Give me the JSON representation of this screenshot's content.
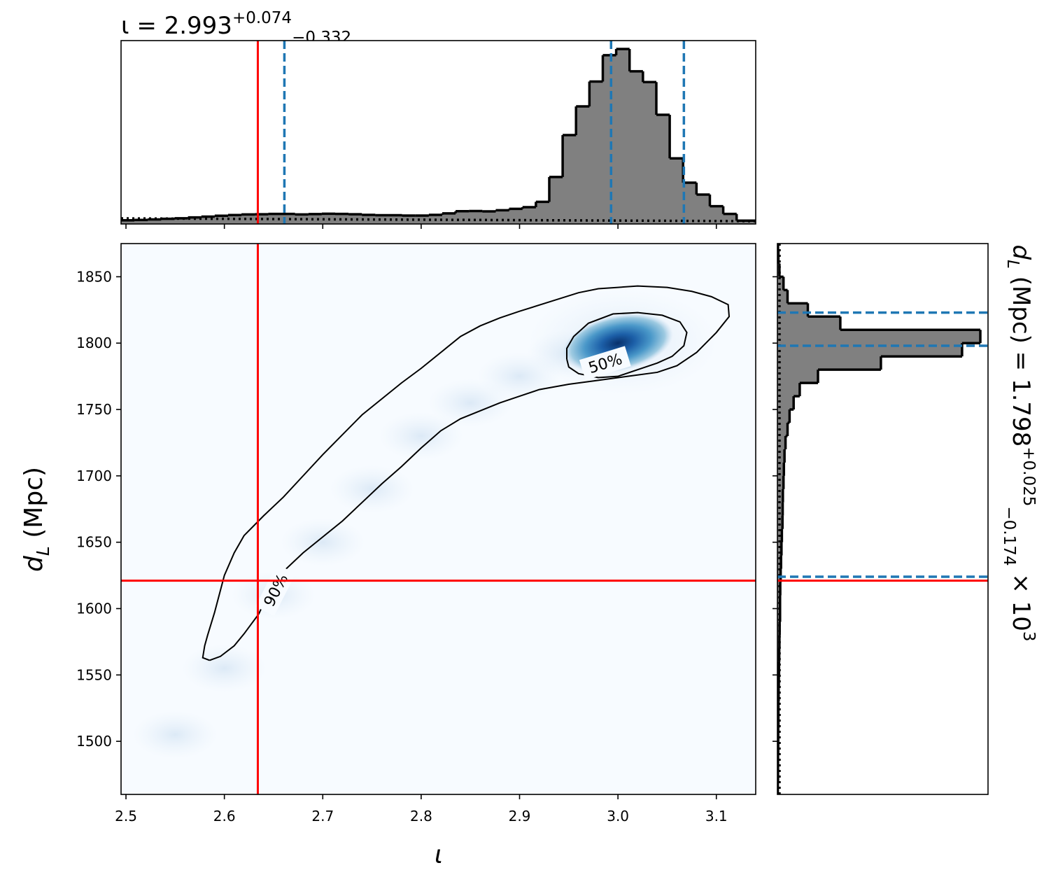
{
  "chart_data": [
    {
      "panel": "top-marginal",
      "type": "histogram",
      "title": {
        "prefix": "ι = 2.993",
        "sup": "+0.074",
        "sub": "−0.332"
      },
      "x_param": "ι",
      "xlim": [
        2.495,
        3.14
      ],
      "bins": [
        2.495,
        2.5086,
        2.5222,
        2.5358,
        2.5494,
        2.563,
        2.5766,
        2.5902,
        2.6038,
        2.6174,
        2.631,
        2.6446,
        2.6582,
        2.6718,
        2.6854,
        2.699,
        2.7126,
        2.7262,
        2.7398,
        2.7534,
        2.767,
        2.7806,
        2.7942,
        2.8078,
        2.8214,
        2.835,
        2.8486,
        2.8622,
        2.8758,
        2.8894,
        2.903,
        2.9166,
        2.9302,
        2.9438,
        2.9574,
        2.971,
        2.9846,
        2.9982,
        3.0118,
        3.0254,
        3.039,
        3.0526,
        3.0662,
        3.0798,
        3.0934,
        3.107,
        3.1206,
        3.14
      ],
      "counts": [
        0.02,
        0.022,
        0.025,
        0.028,
        0.031,
        0.036,
        0.04,
        0.045,
        0.049,
        0.052,
        0.053,
        0.055,
        0.055,
        0.052,
        0.054,
        0.056,
        0.055,
        0.053,
        0.05,
        0.048,
        0.048,
        0.046,
        0.046,
        0.05,
        0.058,
        0.07,
        0.071,
        0.069,
        0.075,
        0.083,
        0.092,
        0.121,
        0.257,
        0.486,
        0.643,
        0.779,
        0.923,
        0.957,
        0.835,
        0.776,
        0.597,
        0.359,
        0.226,
        0.161,
        0.097,
        0.055,
        0.018
      ],
      "quantile_lines": [
        2.661,
        2.993,
        3.067
      ],
      "truth": 2.634,
      "prior_line": "dotted"
    },
    {
      "panel": "joint",
      "type": "heatmap",
      "x_param": "ι",
      "y_param": "d_L",
      "xlabel": "ι",
      "ylabel": {
        "main": "d",
        "sub": "L",
        "rest": " (Mpc)"
      },
      "xlim": [
        2.495,
        3.14
      ],
      "ylim": [
        1460,
        1875
      ],
      "xticks": [
        "2.5",
        "2.6",
        "2.7",
        "2.8",
        "2.9",
        "3.0",
        "3.1"
      ],
      "yticks": [
        "1500",
        "1550",
        "1600",
        "1650",
        "1700",
        "1750",
        "1800",
        "1850"
      ],
      "colormap": "Blues",
      "density_peak": {
        "x": 3.0,
        "y": 1800
      },
      "contours": [
        {
          "label": "50%",
          "points": [
            [
              2.948,
              1788
            ],
            [
              2.95,
              1782
            ],
            [
              2.96,
              1777
            ],
            [
              2.98,
              1774
            ],
            [
              3.0,
              1775
            ],
            [
              3.02,
              1780
            ],
            [
              3.04,
              1785
            ],
            [
              3.055,
              1790
            ],
            [
              3.067,
              1798
            ],
            [
              3.07,
              1808
            ],
            [
              3.063,
              1816
            ],
            [
              3.045,
              1821
            ],
            [
              3.02,
              1823
            ],
            [
              2.995,
              1822
            ],
            [
              2.97,
              1815
            ],
            [
              2.955,
              1805
            ],
            [
              2.948,
              1796
            ],
            [
              2.948,
              1788
            ]
          ],
          "label_pos": [
            2.987,
            1785
          ],
          "label_angle": -17
        },
        {
          "label": "90%",
          "points": [
            [
              2.585,
              1561
            ],
            [
              2.596,
              1564
            ],
            [
              2.61,
              1572
            ],
            [
              2.62,
              1581
            ],
            [
              2.635,
              1596
            ],
            [
              2.645,
              1612
            ],
            [
              2.66,
              1628
            ],
            [
              2.68,
              1642
            ],
            [
              2.7,
              1654
            ],
            [
              2.72,
              1666
            ],
            [
              2.74,
              1680
            ],
            [
              2.76,
              1694
            ],
            [
              2.78,
              1707
            ],
            [
              2.8,
              1721
            ],
            [
              2.82,
              1734
            ],
            [
              2.84,
              1743
            ],
            [
              2.86,
              1749
            ],
            [
              2.88,
              1755
            ],
            [
              2.9,
              1760
            ],
            [
              2.92,
              1765
            ],
            [
              2.95,
              1769
            ],
            [
              2.98,
              1772
            ],
            [
              3.01,
              1775
            ],
            [
              3.04,
              1778
            ],
            [
              3.06,
              1783
            ],
            [
              3.08,
              1793
            ],
            [
              3.1,
              1808
            ],
            [
              3.113,
              1820
            ],
            [
              3.112,
              1829
            ],
            [
              3.095,
              1835
            ],
            [
              3.075,
              1839
            ],
            [
              3.05,
              1842
            ],
            [
              3.02,
              1843
            ],
            [
              3.0,
              1842
            ],
            [
              2.98,
              1841
            ],
            [
              2.96,
              1838
            ],
            [
              2.93,
              1831
            ],
            [
              2.9,
              1824
            ],
            [
              2.88,
              1819
            ],
            [
              2.86,
              1813
            ],
            [
              2.84,
              1805
            ],
            [
              2.82,
              1793
            ],
            [
              2.8,
              1781
            ],
            [
              2.78,
              1770
            ],
            [
              2.76,
              1758
            ],
            [
              2.74,
              1746
            ],
            [
              2.72,
              1731
            ],
            [
              2.7,
              1716
            ],
            [
              2.68,
              1700
            ],
            [
              2.66,
              1684
            ],
            [
              2.64,
              1670
            ],
            [
              2.62,
              1655
            ],
            [
              2.61,
              1642
            ],
            [
              2.6,
              1625
            ],
            [
              2.59,
              1597
            ],
            [
              2.583,
              1580
            ],
            [
              2.58,
              1572
            ],
            [
              2.578,
              1563
            ],
            [
              2.585,
              1561
            ]
          ],
          "label_pos": [
            2.652,
            1614
          ],
          "label_angle": -63
        }
      ],
      "truth": {
        "x": 2.634,
        "y": 1621
      }
    },
    {
      "panel": "right-marginal",
      "type": "histogram",
      "orientation": "horizontal",
      "title": {
        "prefix": "d",
        "sub_L": "L",
        "mid": " (Mpc) = 1.798",
        "sup": "+0.025",
        "sub": "−0.174",
        "suffix": " × 10",
        "exp": "3"
      },
      "y_param": "d_L",
      "ylim": [
        1460,
        1875
      ],
      "bins": [
        1460,
        1470,
        1480,
        1490,
        1500,
        1510,
        1520,
        1530,
        1540,
        1550,
        1560,
        1570,
        1580,
        1590,
        1600,
        1610,
        1620,
        1630,
        1640,
        1650,
        1660,
        1670,
        1680,
        1690,
        1700,
        1710,
        1720,
        1730,
        1740,
        1750,
        1760,
        1770,
        1780,
        1790,
        1800,
        1810,
        1820,
        1830,
        1840,
        1850,
        1860,
        1870,
        1875
      ],
      "counts": [
        0.002,
        0.003,
        0.003,
        0.004,
        0.004,
        0.005,
        0.005,
        0.006,
        0.007,
        0.008,
        0.009,
        0.01,
        0.011,
        0.013,
        0.013,
        0.014,
        0.016,
        0.018,
        0.02,
        0.022,
        0.025,
        0.026,
        0.027,
        0.03,
        0.032,
        0.035,
        0.04,
        0.05,
        0.06,
        0.08,
        0.11,
        0.2,
        0.51,
        0.91,
        1.0,
        0.31,
        0.15,
        0.05,
        0.03,
        0.01,
        0.005,
        0.003
      ],
      "quantile_lines": [
        1624,
        1798,
        1823
      ],
      "truth": 1621,
      "prior_line": "dotted"
    }
  ]
}
